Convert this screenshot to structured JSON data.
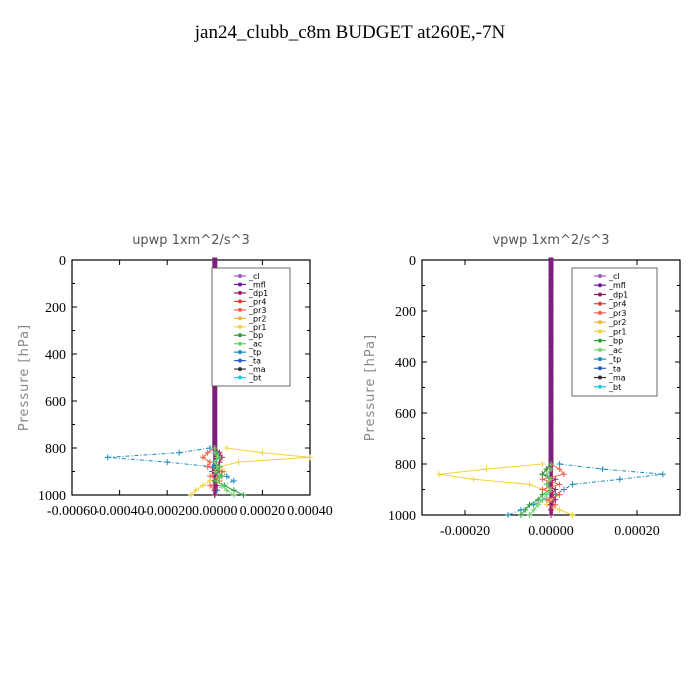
{
  "figure": {
    "title": "jan24_clubb_c8m  BUDGET at260E,-7N"
  },
  "legend_entries": [
    "_cl",
    "_mfl",
    "_dp1",
    "_pr4",
    "_pr3",
    "_pr2",
    "_pr1",
    "_bp",
    "_ac",
    "_tp",
    "_ta",
    "_ma",
    "_bt"
  ],
  "legend_colors": [
    "#9b59b6",
    "#6a1b9a",
    "#a0186b",
    "#e0403a",
    "#f0604a",
    "#f6b13c",
    "#f2d33a",
    "#2e9d3a",
    "#6fd36b",
    "#1a8cc0",
    "#2a5fc0",
    "#333333",
    "#19d0d8"
  ],
  "chart_data": [
    {
      "type": "line",
      "title": "upwp   1xm^2/s^3",
      "ylabel": "Pressure [hPa]",
      "xlabel": "",
      "ylim": [
        1000,
        0
      ],
      "xlim": [
        -0.0006,
        0.0004
      ],
      "y_ticks": [
        "0",
        "200",
        "400",
        "600",
        "800",
        "1000"
      ],
      "x_ticks": [
        "-0.00060",
        "-0.00040",
        "-0.00020",
        "0.00000",
        "0.00020",
        "0.00040"
      ],
      "pressure_levels": [
        800,
        820,
        840,
        860,
        880,
        900,
        920,
        940,
        960,
        980,
        1000
      ],
      "series": [
        {
          "name": "_pr1",
          "values": [
            5e-05,
            0.0002,
            0.0004,
            0.0001,
            2e-05,
            4e-05,
            2e-05,
            -2e-05,
            -5e-05,
            -8e-05,
            -0.0001
          ]
        },
        {
          "name": "_tp",
          "values": [
            -2e-05,
            -0.00015,
            -0.00045,
            -0.0002,
            -1e-05,
            3e-05,
            5e-05,
            8e-05,
            3e-05,
            1e-05,
            0.0
          ]
        },
        {
          "name": "_pr3",
          "values": [
            0.0,
            -3e-05,
            -5e-05,
            -2e-05,
            -3e-05,
            3e-05,
            -2e-05,
            2e-05,
            -2e-05,
            0.0,
            0.0
          ]
        },
        {
          "name": "_dp1",
          "values": [
            0.0,
            2e-05,
            3e-05,
            2e-05,
            1e-05,
            -1e-05,
            2e-05,
            0.0,
            1e-05,
            0.0,
            0.0
          ]
        },
        {
          "name": "_bp",
          "values": [
            0.0,
            1e-05,
            2e-05,
            0.0,
            2e-05,
            1e-05,
            3e-05,
            0.0,
            4e-05,
            8e-05,
            0.00012
          ]
        },
        {
          "name": "_ac",
          "values": [
            0.0,
            0.0,
            1e-05,
            0.0,
            1e-05,
            0.0,
            2e-05,
            1e-05,
            3e-05,
            5e-05,
            8e-05
          ]
        }
      ]
    },
    {
      "type": "line",
      "title": "vpwp   1xm^2/s^3",
      "ylabel": "Pressure [hPa]",
      "xlabel": "",
      "ylim": [
        1000,
        0
      ],
      "xlim": [
        -0.0003,
        0.0003
      ],
      "y_ticks": [
        "0",
        "200",
        "400",
        "600",
        "800",
        "1000"
      ],
      "x_ticks": [
        "-0.00020",
        "0.00000",
        "0.00020"
      ],
      "pressure_levels": [
        800,
        820,
        840,
        860,
        880,
        900,
        920,
        940,
        960,
        980,
        1000
      ],
      "series": [
        {
          "name": "_pr1",
          "values": [
            -2e-05,
            -0.00015,
            -0.00026,
            -0.00018,
            -5e-05,
            -2e-05,
            2e-05,
            0.0,
            -1e-05,
            2e-05,
            5e-05
          ]
        },
        {
          "name": "_tp",
          "values": [
            2e-05,
            0.00012,
            0.00026,
            0.00016,
            5e-05,
            3e-05,
            1e-05,
            -2e-05,
            -4e-05,
            -7e-05,
            -0.0001
          ]
        },
        {
          "name": "_pr3",
          "values": [
            0.0,
            2e-05,
            3e-05,
            -2e-05,
            2e-05,
            -2e-05,
            2e-05,
            -1e-05,
            1e-05,
            0.0,
            0.0
          ]
        },
        {
          "name": "_dp1",
          "values": [
            0.0,
            -1e-05,
            -2e-05,
            1e-05,
            -1e-05,
            1e-05,
            0.0,
            1e-05,
            0.0,
            0.0,
            0.0
          ]
        },
        {
          "name": "_bp",
          "values": [
            0.0,
            -1e-05,
            -2e-05,
            0.0,
            -1e-05,
            0.0,
            -2e-05,
            -3e-05,
            -5e-05,
            -6e-05,
            -7e-05
          ]
        },
        {
          "name": "_ac",
          "values": [
            0.0,
            0.0,
            -1e-05,
            0.0,
            -1e-05,
            0.0,
            -1e-05,
            -2e-05,
            -3e-05,
            -4e-05,
            -5e-05
          ]
        }
      ]
    }
  ]
}
